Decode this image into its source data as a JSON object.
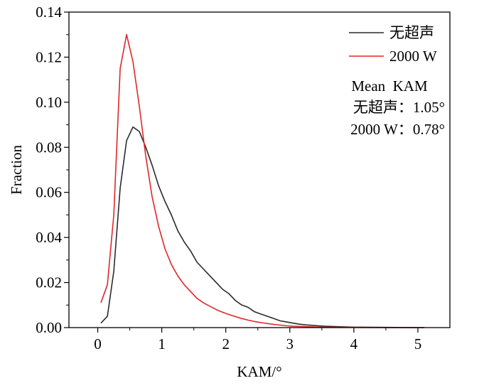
{
  "chart_data": {
    "type": "line",
    "xlabel": "KAM/°",
    "ylabel": "Fraction",
    "xlim": [
      -0.45,
      5.5
    ],
    "ylim": [
      0,
      0.14
    ],
    "xticks": [
      0,
      1,
      2,
      3,
      4,
      5
    ],
    "yticks": [
      0.0,
      0.02,
      0.04,
      0.06,
      0.08,
      0.1,
      0.12,
      0.14
    ],
    "xtick_labels": [
      "0",
      "1",
      "2",
      "3",
      "4",
      "5"
    ],
    "ytick_labels": [
      "0.00",
      "0.02",
      "0.04",
      "0.06",
      "0.08",
      "0.10",
      "0.12",
      "0.14"
    ],
    "grid": false,
    "legend_position": "top-right",
    "series": [
      {
        "name": "无超声",
        "color": "#2b2b2b",
        "x": [
          0.05,
          0.15,
          0.25,
          0.35,
          0.45,
          0.55,
          0.65,
          0.75,
          0.85,
          0.95,
          1.05,
          1.15,
          1.25,
          1.35,
          1.45,
          1.55,
          1.65,
          1.75,
          1.85,
          1.95,
          2.05,
          2.15,
          2.25,
          2.35,
          2.45,
          2.55,
          2.65,
          2.75,
          2.85,
          2.95,
          3.05,
          3.15,
          3.25,
          3.35,
          3.45,
          3.55,
          3.75,
          4.0,
          4.5,
          5.0,
          5.1
        ],
        "y": [
          0.002,
          0.005,
          0.025,
          0.062,
          0.083,
          0.089,
          0.087,
          0.08,
          0.072,
          0.063,
          0.056,
          0.05,
          0.043,
          0.038,
          0.034,
          0.029,
          0.026,
          0.023,
          0.02,
          0.017,
          0.015,
          0.012,
          0.01,
          0.009,
          0.007,
          0.006,
          0.005,
          0.004,
          0.003,
          0.0025,
          0.002,
          0.0015,
          0.0012,
          0.001,
          0.0008,
          0.0006,
          0.0004,
          0.0002,
          0.0001,
          0.0,
          0.0
        ]
      },
      {
        "name": "2000 W",
        "color": "#e0262b",
        "x": [
          0.05,
          0.15,
          0.25,
          0.35,
          0.45,
          0.55,
          0.65,
          0.75,
          0.85,
          0.95,
          1.05,
          1.15,
          1.25,
          1.35,
          1.45,
          1.55,
          1.65,
          1.75,
          1.85,
          1.95,
          2.05,
          2.15,
          2.25,
          2.35,
          2.45,
          2.55,
          2.65,
          2.75,
          2.85,
          2.95,
          3.05,
          3.25,
          3.5,
          4.0,
          4.5,
          5.0,
          5.1
        ],
        "y": [
          0.011,
          0.019,
          0.05,
          0.115,
          0.13,
          0.118,
          0.098,
          0.076,
          0.058,
          0.045,
          0.035,
          0.028,
          0.023,
          0.019,
          0.016,
          0.013,
          0.011,
          0.0095,
          0.008,
          0.0068,
          0.0058,
          0.0049,
          0.004,
          0.0033,
          0.0027,
          0.0022,
          0.0018,
          0.0014,
          0.0011,
          0.0008,
          0.0006,
          0.0004,
          0.0002,
          0.0001,
          0.0,
          0.0,
          0.0
        ]
      }
    ],
    "annotations": [
      "Mean  KAM",
      "无超声：1.05°",
      "2000 W：0.78°"
    ]
  }
}
